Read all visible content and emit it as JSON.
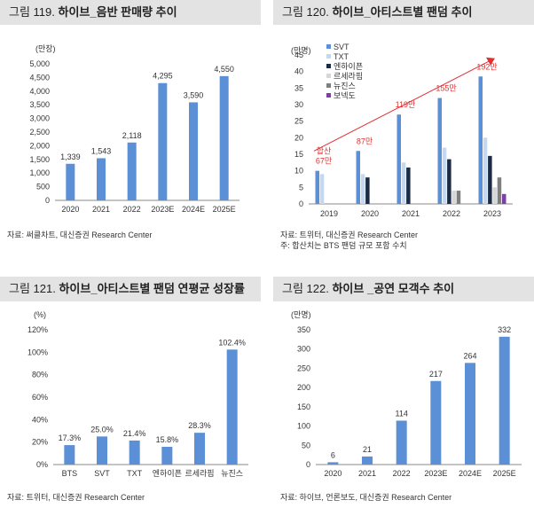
{
  "panels": [
    {
      "title_num": "그림 119.",
      "title_text": "하이브_음반 판매량 추이",
      "source": "자료: 써클차트, 대신증권 Research Center"
    },
    {
      "title_num": "그림 120.",
      "title_text": "하이브_아티스트별 팬덤 추이",
      "source": "자료: 트위터, 대신증권 Research Center",
      "note": "주: 합산치는 BTS 팬덤 규모 포함 수치"
    },
    {
      "title_num": "그림 121.",
      "title_text": "하이브_아티스트별 팬덤 연평균 성장률",
      "source": "자료: 트위터, 대신증권 Research Center"
    },
    {
      "title_num": "그림 122.",
      "title_text": "하이브 _공연 모객수 추이",
      "source": "자료: 하이브, 언론보도, 대신증권 Research Center"
    }
  ],
  "chart_data": [
    {
      "type": "bar",
      "unit_label": "(만장)",
      "categories": [
        "2020",
        "2021",
        "2022",
        "2023E",
        "2024E",
        "2025E"
      ],
      "values": [
        1339,
        1543,
        2118,
        4295,
        3590,
        4550
      ],
      "value_labels": [
        "1,339",
        "1,543",
        "2,118",
        "4,295",
        "3,590",
        "4,550"
      ],
      "ylim": [
        0,
        5000
      ],
      "yticks": [
        0,
        500,
        1000,
        1500,
        2000,
        2500,
        3000,
        3500,
        4000,
        4500,
        5000
      ],
      "ytick_labels": [
        "0",
        "500",
        "1,000",
        "1,500",
        "2,000",
        "2,500",
        "3,000",
        "3,500",
        "4,000",
        "4,500",
        "5,000"
      ],
      "color": "#5b8fd6"
    },
    {
      "type": "bar",
      "unit_label": "(만명)",
      "categories": [
        "2019",
        "2020",
        "2021",
        "2022",
        "2023"
      ],
      "series": [
        {
          "name": "SVT",
          "color": "#5b8fd6",
          "values": [
            10,
            16,
            27,
            32,
            38.5
          ]
        },
        {
          "name": "TXT",
          "color": "#c5d8f2",
          "values": [
            9,
            9,
            12.5,
            17,
            20
          ]
        },
        {
          "name": "엔하이픈",
          "color": "#1b2b44",
          "values": [
            null,
            8,
            11,
            13.5,
            14.5
          ]
        },
        {
          "name": "르세라핌",
          "color": "#d6d6d6",
          "values": [
            null,
            null,
            null,
            4,
            5
          ]
        },
        {
          "name": "뉴진스",
          "color": "#7f7f7f",
          "values": [
            null,
            null,
            null,
            4,
            8
          ]
        },
        {
          "name": "보넥도",
          "color": "#7b3fa6",
          "values": [
            null,
            null,
            null,
            null,
            3
          ]
        }
      ],
      "ylim": [
        0,
        45
      ],
      "yticks": [
        0,
        5,
        10,
        15,
        20,
        25,
        30,
        35,
        40,
        45
      ],
      "annotations": [
        {
          "category": "2019",
          "text": "합산\n67만",
          "value": 67
        },
        {
          "category": "2020",
          "text": "87만",
          "value": 87
        },
        {
          "category": "2021",
          "text": "119만",
          "value": 119
        },
        {
          "category": "2022",
          "text": "155만",
          "value": 155
        },
        {
          "category": "2023",
          "text": "192만",
          "value": 192
        }
      ],
      "annotation_color": "#e03030"
    },
    {
      "type": "bar",
      "unit_label": "(%)",
      "categories": [
        "BTS",
        "SVT",
        "TXT",
        "엔하이픈",
        "르세라핌",
        "뉴진스"
      ],
      "values": [
        17.3,
        25.0,
        21.4,
        15.8,
        28.3,
        102.4
      ],
      "value_labels": [
        "17.3%",
        "25.0%",
        "21.4%",
        "15.8%",
        "28.3%",
        "102.4%"
      ],
      "ylim": [
        0,
        120
      ],
      "yticks": [
        0,
        20,
        40,
        60,
        80,
        100,
        120
      ],
      "ytick_labels": [
        "0%",
        "20%",
        "40%",
        "60%",
        "80%",
        "100%",
        "120%"
      ],
      "color": "#5b8fd6"
    },
    {
      "type": "bar",
      "unit_label": "(만명)",
      "categories": [
        "2020",
        "2021",
        "2022",
        "2023E",
        "2024E",
        "2025E"
      ],
      "values": [
        6,
        21,
        114,
        217,
        264,
        332
      ],
      "value_labels": [
        "6",
        "21",
        "114",
        "217",
        "264",
        "332"
      ],
      "ylim": [
        0,
        350
      ],
      "yticks": [
        0,
        50,
        100,
        150,
        200,
        250,
        300,
        350
      ],
      "ytick_labels": [
        "0",
        "50",
        "100",
        "150",
        "200",
        "250",
        "300",
        "350"
      ],
      "color": "#5b8fd6"
    }
  ]
}
